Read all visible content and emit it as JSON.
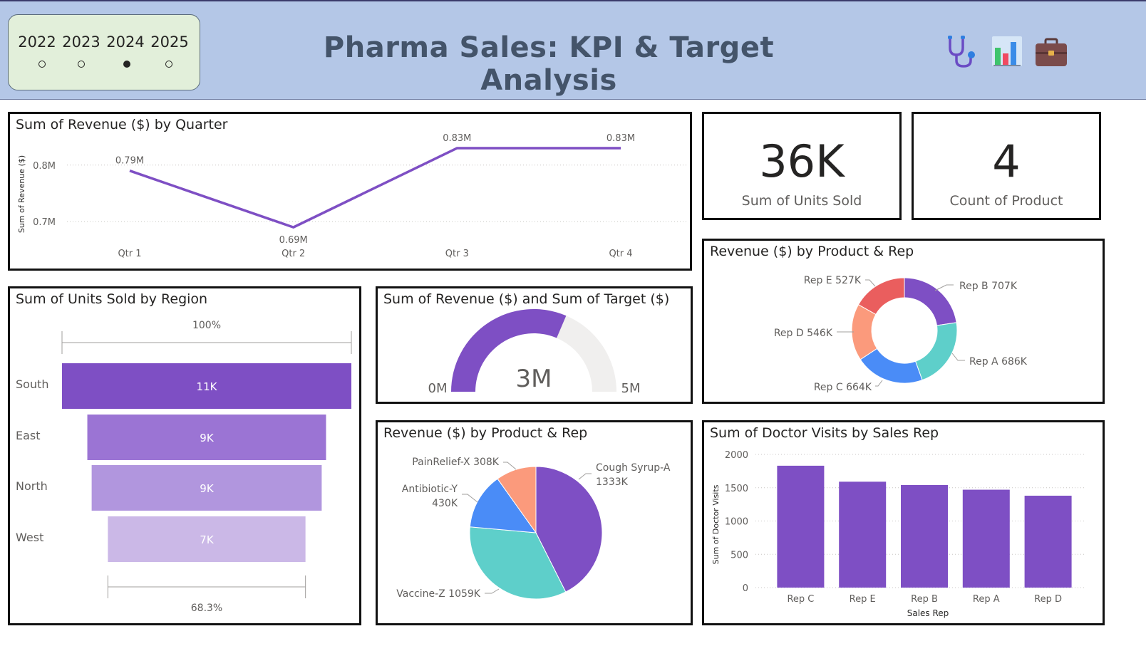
{
  "header": {
    "title": "Pharma Sales: KPI & Target Analysis",
    "years": [
      {
        "label": "2022",
        "selected": false
      },
      {
        "label": "2023",
        "selected": false
      },
      {
        "label": "2024",
        "selected": true
      },
      {
        "label": "2025",
        "selected": false
      }
    ],
    "icons": [
      "stethoscope-icon",
      "bar-chart-icon",
      "briefcase-icon"
    ]
  },
  "colors": {
    "purple": "#7e4fc4",
    "purple2": "#9b74d4",
    "purple3": "#b196de",
    "purple4": "#cbb8e7",
    "teal": "#5ecfca",
    "blue": "#4a8cf7",
    "salmon": "#fb9a7c",
    "red": "#ea5e5e",
    "gauge_bg": "#f0efee"
  },
  "kpis": {
    "units": {
      "value": "36K",
      "label": "Sum of Units Sold"
    },
    "products": {
      "value": "4",
      "label": "Count of Product"
    }
  },
  "chart_data": [
    {
      "id": "revenue_by_quarter",
      "type": "line",
      "title": "Sum of Revenue ($) by Quarter",
      "ylabel": "Sum of Revenue ($)",
      "xlabel": "",
      "categories": [
        "Qtr 1",
        "Qtr 2",
        "Qtr 3",
        "Qtr 4"
      ],
      "values": [
        0.79,
        0.69,
        0.83,
        0.83
      ],
      "data_labels": [
        "0.79M",
        "0.69M",
        "0.83M",
        "0.83M"
      ],
      "yticks": [
        {
          "value": 0.7,
          "label": "0.7M"
        },
        {
          "value": 0.8,
          "label": "0.8M"
        }
      ],
      "ylim": [
        0.67,
        0.84
      ],
      "grid": true
    },
    {
      "id": "units_by_region",
      "type": "funnel",
      "title": "Sum of Units Sold by Region",
      "categories": [
        "South",
        "East",
        "North",
        "West"
      ],
      "values": [
        11,
        9,
        9,
        7
      ],
      "data_labels": [
        "11K",
        "9K",
        "9K",
        "7K"
      ],
      "top_percent": "100%",
      "bottom_percent": "68.3%",
      "bottom_ratio": 0.683,
      "ratios": [
        1.0,
        0.825,
        0.795,
        0.683
      ]
    },
    {
      "id": "revenue_vs_target",
      "type": "gauge",
      "title": "Sum of Revenue ($) and Sum of Target ($)",
      "value": 3.14,
      "value_label": "3M",
      "min": 0,
      "max": 5,
      "min_label": "0M",
      "max_label": "5M"
    },
    {
      "id": "revenue_by_rep_donut",
      "type": "pie",
      "style": "donut",
      "title": "Revenue ($) by Product & Rep",
      "series": [
        {
          "name": "Rep B",
          "value": 707,
          "label": "Rep B 707K"
        },
        {
          "name": "Rep A",
          "value": 686,
          "label": "Rep A 686K"
        },
        {
          "name": "Rep C",
          "value": 664,
          "label": "Rep C 664K"
        },
        {
          "name": "Rep D",
          "value": 546,
          "label": "Rep D 546K"
        },
        {
          "name": "Rep E",
          "value": 527,
          "label": "Rep E 527K"
        }
      ]
    },
    {
      "id": "revenue_by_product_pie",
      "type": "pie",
      "title": "Revenue ($) by Product & Rep",
      "series": [
        {
          "name": "Cough Syrup-A",
          "value": 1333,
          "label_line1": "Cough Syrup-A",
          "label_line2": "1333K"
        },
        {
          "name": "Vaccine-Z",
          "value": 1059,
          "label_line1": "Vaccine-Z 1059K",
          "label_line2": ""
        },
        {
          "name": "Antibiotic-Y",
          "value": 430,
          "label_line1": "Antibiotic-Y",
          "label_line2": "430K"
        },
        {
          "name": "PainRelief-X",
          "value": 308,
          "label_line1": "PainRelief-X 308K",
          "label_line2": ""
        }
      ]
    },
    {
      "id": "doctor_visits_by_rep",
      "type": "bar",
      "title": "Sum of Doctor Visits by Sales Rep",
      "xlabel": "Sales Rep",
      "ylabel": "Sum of Doctor Visits",
      "categories": [
        "Rep C",
        "Rep E",
        "Rep B",
        "Rep A",
        "Rep D"
      ],
      "values": [
        1830,
        1590,
        1540,
        1470,
        1380
      ],
      "yticks": [
        0,
        500,
        1000,
        1500,
        2000
      ],
      "ylim": [
        0,
        2000
      ],
      "grid": true
    }
  ]
}
